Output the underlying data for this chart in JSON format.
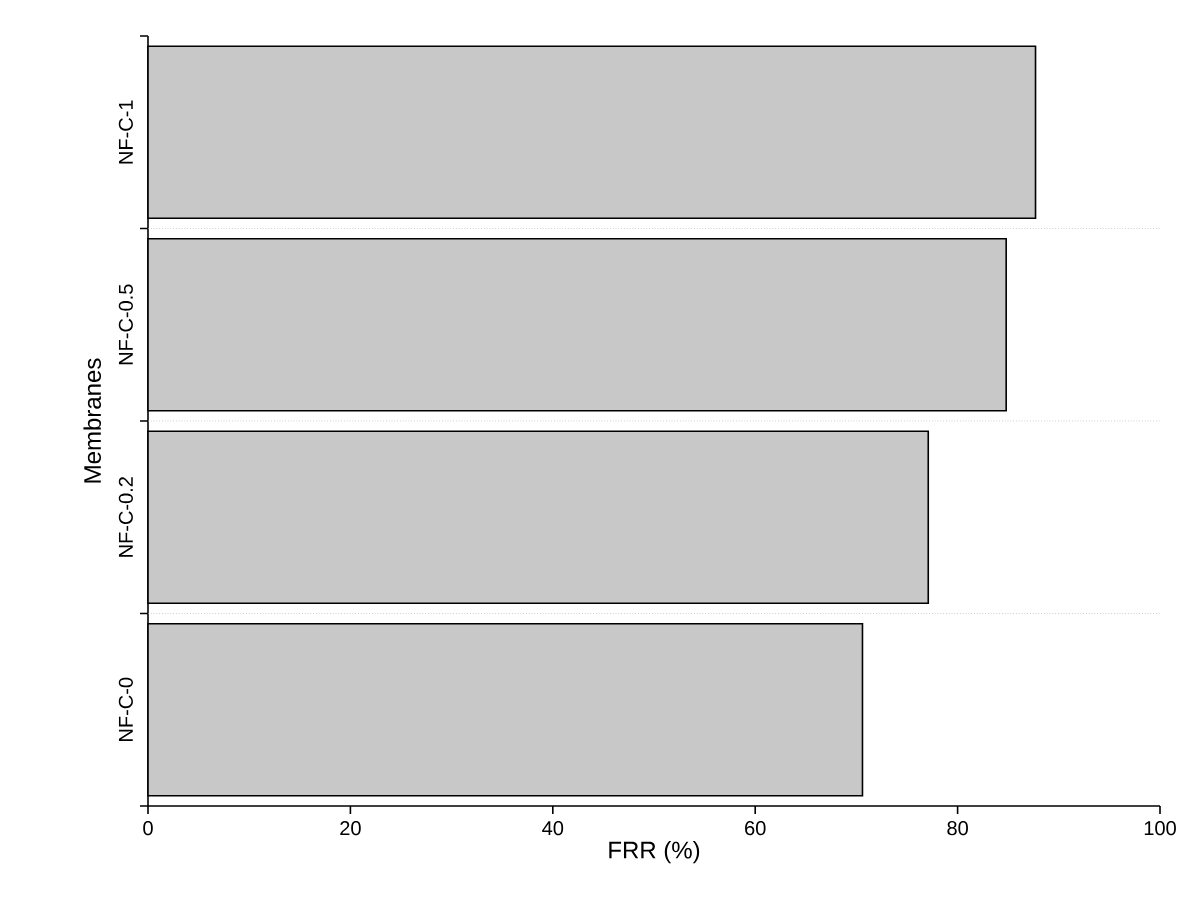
{
  "chart_data": {
    "type": "bar",
    "orientation": "horizontal",
    "xlabel": "FRR (%)",
    "ylabel": "Membranes",
    "categories": [
      "NF-C-1",
      "NF-C-0.5",
      "NF-C-0.2",
      "NF-C-0"
    ],
    "values": [
      87.7,
      84.8,
      77.1,
      70.6
    ],
    "color": "#c8c8c8",
    "xlim": [
      0,
      100
    ],
    "xticks": [
      0,
      20,
      40,
      60,
      80,
      100
    ],
    "grid": "y"
  }
}
